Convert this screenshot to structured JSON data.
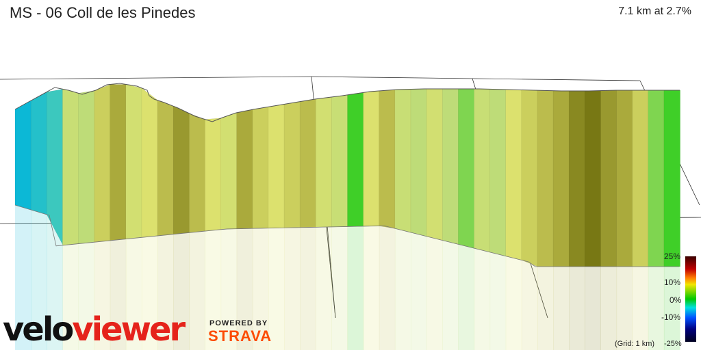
{
  "segment": {
    "title": "MS - 06 Coll de les Pinedes",
    "summary": "7.1 km at 2.7%"
  },
  "scale": {
    "labels": [
      "25%",
      "10%",
      "0%",
      "-10%",
      "-25%"
    ],
    "grid_note": "(Grid: 1 km)"
  },
  "branding": {
    "logo_part1": "velo",
    "logo_part2": "viewer",
    "powered_by": "POWERED BY",
    "strava": "STRAVA"
  },
  "chart_data": {
    "type": "area",
    "title": "MS - 06 Coll de les Pinedes",
    "distance_km": 7.1,
    "average_gradient_pct": 2.7,
    "gradient_scale_pct": [
      -25,
      -10,
      0,
      10,
      25
    ],
    "grid_spacing_km": 1,
    "segments_gradient_pct": [
      -9,
      -7,
      -5,
      4,
      3,
      7,
      9,
      5,
      6,
      8,
      10,
      8,
      6,
      5,
      9,
      7,
      6,
      7,
      8,
      5,
      4,
      1,
      6,
      8,
      4,
      3,
      5,
      3,
      2,
      4,
      3,
      6,
      7,
      8,
      9,
      11,
      12,
      10,
      9,
      7,
      2,
      1
    ]
  }
}
